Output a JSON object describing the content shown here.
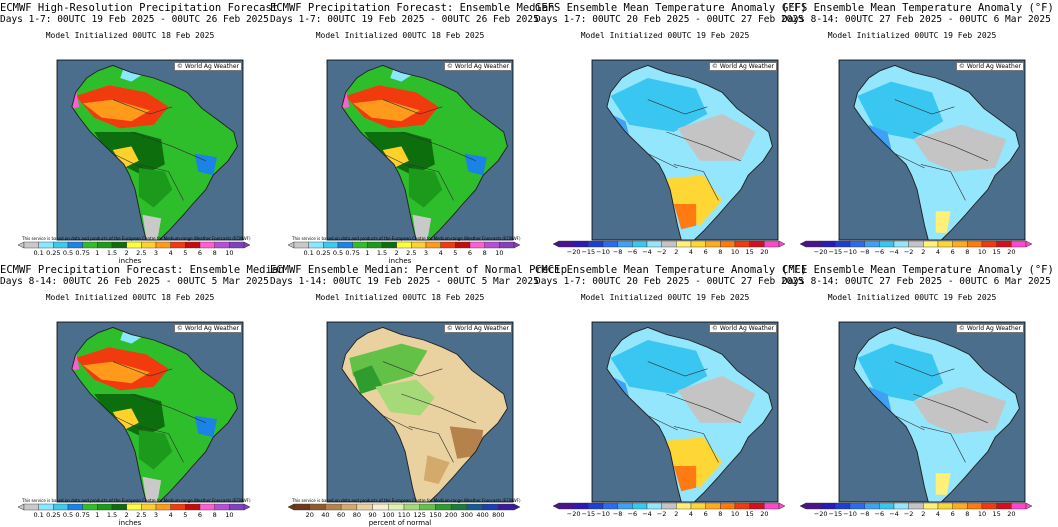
{
  "credit": "© World Ag Weather",
  "disclaimer": "This service is based on data and products of the European Centre for Medium-range Weather Forecasts (ECMWF)",
  "precip_scale": {
    "labels": [
      "0.1",
      "0.25",
      "0.5",
      "0.75",
      "1",
      "1.5",
      "2",
      "2.5",
      "3",
      "4",
      "5",
      "6",
      "8",
      "10"
    ],
    "colors": [
      "#c9c9c9",
      "#8be7ff",
      "#3ccaf0",
      "#1b82e6",
      "#2fbe2b",
      "#1c9a1c",
      "#0c6e0c",
      "#ffff3a",
      "#ffd12a",
      "#ff9a1a",
      "#f23a0f",
      "#c40c0c",
      "#ff5cd6",
      "#b44fd6",
      "#8040c0"
    ],
    "unit": "inches"
  },
  "temp_scale": {
    "labels": [
      "−20",
      "−15",
      "−10",
      "−8",
      "−6",
      "−4",
      "−2",
      "2",
      "4",
      "6",
      "8",
      "10",
      "15",
      "20"
    ],
    "colors": [
      "#4a148c",
      "#2b1ab5",
      "#1e3fd6",
      "#2a6bf0",
      "#3ea1f5",
      "#39c7f2",
      "#93e6fb",
      "#c4c4c4",
      "#fff07a",
      "#ffd735",
      "#ffab1e",
      "#ff7a10",
      "#f23a0f",
      "#d60e1e",
      "#ff48c8"
    ]
  },
  "pct_scale": {
    "labels": [
      "20",
      "40",
      "60",
      "80",
      "90",
      "100",
      "110",
      "125",
      "150",
      "200",
      "300",
      "400",
      "800"
    ],
    "colors": [
      "#6b3a1e",
      "#8c5a2e",
      "#b4824a",
      "#d3a96c",
      "#ead2a0",
      "#f6efd2",
      "#dff0b0",
      "#a6da78",
      "#64c148",
      "#2f9c2f",
      "#1c7a3a",
      "#155c8f",
      "#1b3fb3",
      "#3a1a9c"
    ],
    "unit": "percent of normal"
  },
  "panels": [
    {
      "t1": "ECMWF High-Resolution Precipitation Forecast",
      "t2": "Days 1-7: 00UTC 19 Feb 2025 - 00UTC 26 Feb 2025",
      "t3": "Model Initialized 00UTC 18 Feb 2025",
      "scale": "precip",
      "pattern": "precip_wet"
    },
    {
      "t1": "ECMWF Precipitation Forecast: Ensemble Median",
      "t2": "Days 1-7: 00UTC 19 Feb 2025 - 00UTC 26 Feb 2025",
      "t3": "Model Initialized 00UTC 18 Feb 2025",
      "scale": "precip",
      "pattern": "precip_wet"
    },
    {
      "t1": "GEFS Ensemble Mean Temperature Anomaly (°F)",
      "t2": "Days 1-7: 00UTC 20 Feb 2025 - 00UTC 27 Feb 2025",
      "t3": "Model Initialized 00UTC 19 Feb 2025",
      "scale": "temp",
      "pattern": "temp_warmsouth"
    },
    {
      "t1": "GEFS Ensemble Mean Temperature Anomaly (°F)",
      "t2": "Days 8-14: 00UTC 27 Feb 2025 - 00UTC 6 Mar 2025",
      "t3": "Model Initialized 00UTC 19 Feb 2025",
      "scale": "temp",
      "pattern": "temp_cool"
    },
    {
      "t1": "ECMWF Precipitation Forecast: Ensemble Median",
      "t2": "Days 8-14: 00UTC 26 Feb 2025 - 00UTC 5 Mar 2025",
      "t3": "Model Initialized 00UTC 18 Feb 2025",
      "scale": "precip",
      "pattern": "precip_wet"
    },
    {
      "t1": "ECMWF Ensemble Median: Percent of Normal Precip",
      "t2": "Days 1-14: 00UTC 19 Feb 2025 - 00UTC 5 Mar 2025",
      "t3": "Model Initialized 00UTC 18 Feb 2025",
      "scale": "pct",
      "pattern": "pct"
    },
    {
      "t1": "CMCE Ensemble Mean Temperature Anomaly (°F)",
      "t2": "Days 1-7: 00UTC 20 Feb 2025 - 00UTC 27 Feb 2025",
      "t3": "Model Initialized 00UTC 19 Feb 2025",
      "scale": "temp",
      "pattern": "temp_warmsouth"
    },
    {
      "t1": "CMCE Ensemble Mean Temperature Anomaly (°F)",
      "t2": "Days 8-14: 00UTC 27 Feb 2025 - 00UTC 6 Mar 2025",
      "t3": "Model Initialized 00UTC 19 Feb 2025",
      "scale": "temp",
      "pattern": "temp_cool"
    }
  ]
}
